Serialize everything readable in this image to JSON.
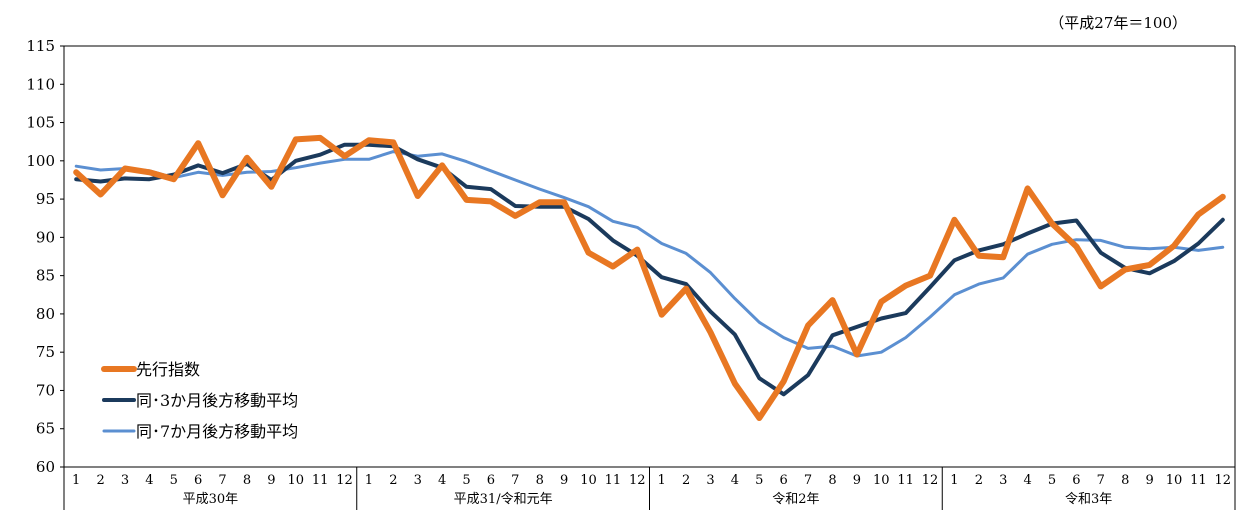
{
  "chart_data": {
    "type": "line",
    "unit_note": "（平成27年＝100）",
    "ylim": [
      60,
      115
    ],
    "yticks": [
      60,
      65,
      70,
      75,
      80,
      85,
      90,
      95,
      100,
      105,
      110,
      115
    ],
    "grid": false,
    "legend_position": "bottom-left",
    "month_labels": [
      "1",
      "2",
      "3",
      "4",
      "5",
      "6",
      "7",
      "8",
      "9",
      "10",
      "11",
      "12"
    ],
    "year_groups": [
      "平成30年",
      "平成31/令和元年",
      "令和2年",
      "令和3年"
    ],
    "series": [
      {
        "name": "先行指数",
        "color": "#e87722",
        "values": [
          98.5,
          95.6,
          99.0,
          98.5,
          97.6,
          102.3,
          95.5,
          100.4,
          96.6,
          102.8,
          103.0,
          100.6,
          102.7,
          102.4,
          95.4,
          99.4,
          94.9,
          94.7,
          92.8,
          94.6,
          94.6,
          88.0,
          86.2,
          88.4,
          79.9,
          83.3,
          77.6,
          70.9,
          66.4,
          71.2,
          78.5,
          81.8,
          74.7,
          81.6,
          83.7,
          85.0,
          92.3,
          87.6,
          87.4,
          96.4,
          91.8,
          88.8,
          83.6,
          85.8,
          86.4,
          88.9,
          93.0,
          95.3
        ]
      },
      {
        "name": "同･3か月後方移動平均",
        "color": "#1b3a5c",
        "values": [
          97.6,
          97.3,
          97.7,
          97.6,
          98.2,
          99.4,
          98.4,
          99.6,
          97.5,
          100.0,
          100.8,
          102.1,
          102.1,
          101.9,
          100.2,
          99.1,
          96.6,
          96.3,
          94.1,
          94.0,
          94.0,
          92.4,
          89.6,
          87.6,
          84.8,
          83.9,
          80.3,
          77.3,
          71.6,
          69.5,
          72.0,
          77.2,
          78.3,
          79.4,
          80.1,
          83.5,
          87.0,
          88.3,
          89.1,
          90.5,
          91.8,
          92.2,
          88.0,
          86.0,
          85.3,
          86.9,
          89.2,
          92.3
        ]
      },
      {
        "name": "同･7か月後方移動平均",
        "color": "#5b8fd1",
        "values": [
          99.3,
          98.8,
          99.0,
          98.7,
          97.8,
          98.5,
          98.1,
          98.5,
          98.6,
          99.1,
          99.7,
          100.2,
          100.2,
          101.2,
          100.6,
          100.9,
          99.9,
          98.7,
          97.5,
          96.3,
          95.2,
          94.0,
          92.1,
          91.3,
          89.2,
          87.9,
          85.4,
          82.0,
          78.9,
          76.9,
          75.5,
          75.8,
          74.5,
          75.0,
          76.9,
          79.6,
          82.5,
          83.9,
          84.7,
          87.8,
          89.1,
          89.7,
          89.6,
          88.7,
          88.5,
          88.7,
          88.3,
          88.7
        ]
      }
    ]
  }
}
